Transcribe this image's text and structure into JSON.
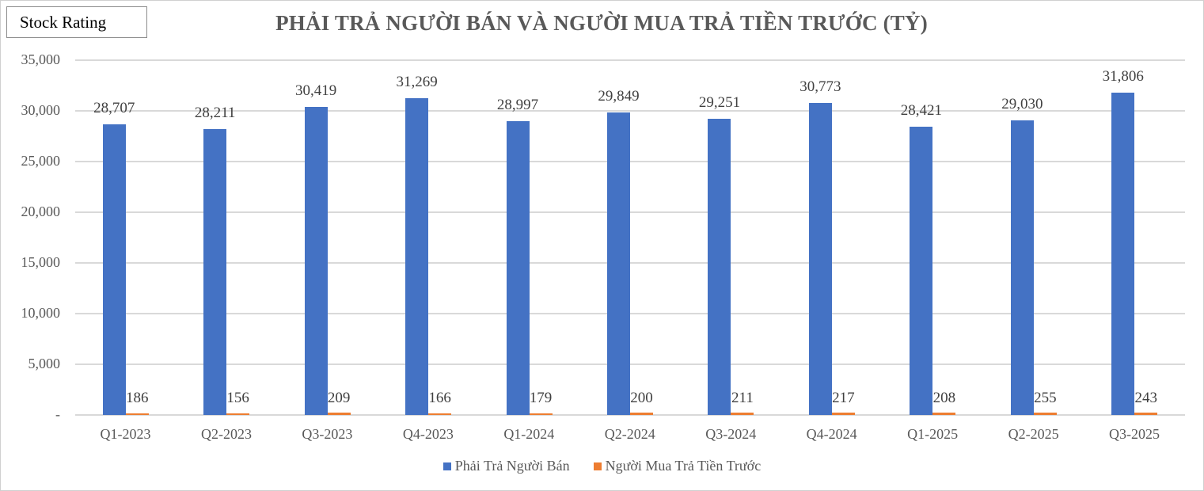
{
  "header": {
    "badge_label": "Stock Rating",
    "title": "PHẢI TRẢ NGƯỜI BÁN VÀ NGƯỜI MUA TRẢ TIỀN TRƯỚC (TỶ)"
  },
  "colors": {
    "series1": "#4472c4",
    "series2": "#ed7d31",
    "gridline": "#d9d9d9",
    "title": "#595959"
  },
  "axis": {
    "y_ticks": [
      "35,000",
      "30,000",
      "25,000",
      "20,000",
      "15,000",
      "10,000",
      "5,000",
      "-"
    ]
  },
  "legend": [
    {
      "label": "Phải Trả Người Bán",
      "color": "#4472c4"
    },
    {
      "label": "Người Mua Trả Tiền Trước",
      "color": "#ed7d31"
    }
  ],
  "chart_data": {
    "type": "bar",
    "title": "PHẢI TRẢ NGƯỜI BÁN VÀ NGƯỜI MUA TRẢ TIỀN TRƯỚC (TỶ)",
    "xlabel": "",
    "ylabel": "",
    "ylim": [
      0,
      35000
    ],
    "y_ticks": [
      0,
      5000,
      10000,
      15000,
      20000,
      25000,
      30000,
      35000
    ],
    "grid": true,
    "legend_position": "bottom",
    "categories": [
      "Q1-2023",
      "Q2-2023",
      "Q3-2023",
      "Q4-2023",
      "Q1-2024",
      "Q2-2024",
      "Q3-2024",
      "Q4-2024",
      "Q1-2025",
      "Q2-2025",
      "Q3-2025"
    ],
    "series": [
      {
        "name": "Phải Trả Người Bán",
        "color": "#4472c4",
        "values": [
          28707,
          28211,
          30419,
          31269,
          28997,
          29849,
          29251,
          30773,
          28421,
          29030,
          31806
        ],
        "labels": [
          "28,707",
          "28,211",
          "30,419",
          "31,269",
          "28,997",
          "29,849",
          "29,251",
          "30,773",
          "28,421",
          "29,030",
          "31,806"
        ]
      },
      {
        "name": "Người Mua Trả Tiền Trước",
        "color": "#ed7d31",
        "values": [
          186,
          156,
          209,
          166,
          179,
          200,
          211,
          217,
          208,
          255,
          243
        ],
        "labels": [
          "186",
          "156",
          "209",
          "166",
          "179",
          "200",
          "211",
          "217",
          "208",
          "255",
          "243"
        ]
      }
    ]
  }
}
